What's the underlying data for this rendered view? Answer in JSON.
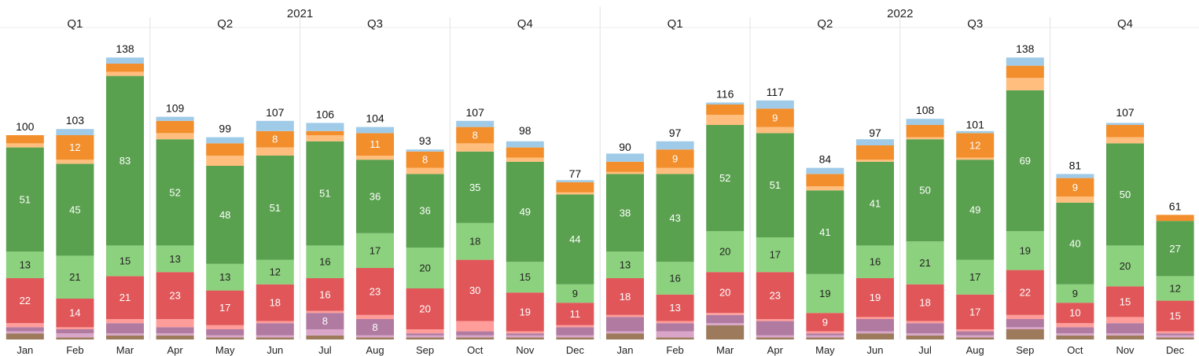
{
  "chart_data": {
    "type": "bar",
    "stacked": true,
    "years": [
      {
        "label": "2021",
        "quarters": [
          "Q1",
          "Q2",
          "Q3",
          "Q4"
        ]
      },
      {
        "label": "2022",
        "quarters": [
          "Q1",
          "Q2",
          "Q3",
          "Q4"
        ]
      }
    ],
    "categories": [
      "Jan",
      "Feb",
      "Mar",
      "Apr",
      "May",
      "Jun",
      "Jul",
      "Aug",
      "Sep",
      "Oct",
      "Nov",
      "Dec",
      "Jan",
      "Feb",
      "Mar",
      "Apr",
      "May",
      "Jun",
      "Jul",
      "Aug",
      "Sep",
      "Oct",
      "Nov",
      "Dec"
    ],
    "totals": [
      100,
      103,
      138,
      109,
      99,
      107,
      106,
      104,
      93,
      107,
      98,
      77,
      90,
      97,
      116,
      117,
      84,
      97,
      108,
      101,
      138,
      81,
      107,
      61
    ],
    "series_colors": [
      "#9c7a5b",
      "#d9a6c9",
      "#b07aa1",
      "#ff9d9a",
      "#e15759",
      "#8cd17d",
      "#59a14f",
      "#ffbe7d",
      "#f28e2b",
      "#a0cbe8"
    ],
    "series": [
      {
        "values": [
          3,
          1,
          2,
          2,
          1,
          1,
          2,
          1,
          1,
          1,
          1,
          1,
          3,
          1,
          7,
          1,
          1,
          3,
          2,
          1,
          5,
          2,
          2,
          1
        ]
      },
      {
        "values": [
          1,
          2,
          1,
          1,
          1,
          1,
          3,
          1,
          1,
          1,
          1,
          1,
          1,
          3,
          1,
          1,
          1,
          1,
          1,
          1,
          1,
          1,
          1,
          1
        ]
      },
      {
        "values": [
          2,
          2,
          5,
          3,
          3,
          6,
          8,
          8,
          1,
          2,
          1,
          4,
          7,
          4,
          4,
          7,
          1,
          6,
          5,
          2,
          4,
          3,
          5,
          1
        ]
      },
      {
        "values": [
          2,
          1,
          2,
          4,
          2,
          1,
          1,
          2,
          2,
          5,
          1,
          1,
          1,
          1,
          1,
          1,
          1,
          1,
          1,
          1,
          2,
          2,
          3,
          1
        ]
      },
      {
        "values": [
          22,
          14,
          21,
          23,
          17,
          18,
          16,
          23,
          20,
          30,
          19,
          11,
          18,
          13,
          20,
          23,
          9,
          19,
          18,
          17,
          22,
          10,
          15,
          15
        ]
      },
      {
        "values": [
          13,
          21,
          15,
          13,
          13,
          12,
          16,
          17,
          20,
          18,
          15,
          9,
          13,
          16,
          20,
          17,
          19,
          16,
          21,
          17,
          19,
          9,
          20,
          12
        ]
      },
      {
        "values": [
          51,
          45,
          83,
          52,
          48,
          51,
          51,
          36,
          36,
          35,
          49,
          44,
          38,
          43,
          52,
          51,
          41,
          41,
          50,
          49,
          69,
          40,
          50,
          27
        ]
      },
      {
        "values": [
          2,
          2,
          2,
          3,
          5,
          4,
          3,
          2,
          3,
          4,
          2,
          1,
          1,
          3,
          5,
          3,
          2,
          1,
          1,
          1,
          6,
          3,
          3,
          0
        ]
      },
      {
        "values": [
          4,
          12,
          4,
          6,
          6,
          8,
          2,
          11,
          8,
          8,
          5,
          5,
          5,
          9,
          5,
          9,
          6,
          7,
          6,
          12,
          6,
          9,
          6,
          3
        ]
      },
      {
        "values": [
          0,
          3,
          3,
          2,
          3,
          5,
          4,
          3,
          1,
          3,
          3,
          1,
          4,
          4,
          1,
          4,
          3,
          3,
          3,
          1,
          4,
          2,
          1,
          0
        ]
      }
    ]
  }
}
